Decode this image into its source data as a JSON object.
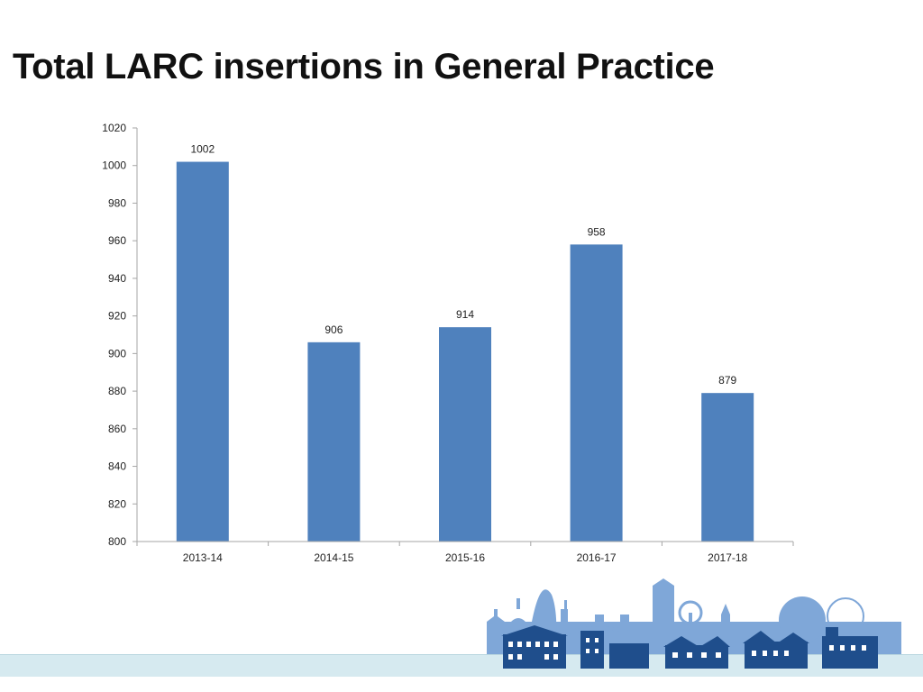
{
  "title": "Total LARC insertions in General Practice",
  "colors": {
    "bar": "#4f81bd",
    "axis": "#a6a6a6",
    "footer_band": "#d6eaf0",
    "skyline_light": "#7fa7d8",
    "skyline_dark": "#1f4e8c"
  },
  "chart_data": {
    "type": "bar",
    "title": "Total LARC insertions in General Practice",
    "categories": [
      "2013-14",
      "2014-15",
      "2015-16",
      "2016-17",
      "2017-18"
    ],
    "values": [
      1002,
      906,
      914,
      958,
      879
    ],
    "data_labels": [
      "1002",
      "906",
      "914",
      "958",
      "879"
    ],
    "xlabel": "",
    "ylabel": "",
    "ylim": [
      800,
      1020
    ],
    "yticks": [
      800,
      820,
      840,
      860,
      880,
      900,
      920,
      940,
      960,
      980,
      1000,
      1020
    ],
    "grid": false,
    "legend": "none"
  },
  "decorations": {
    "skyline_icon": "city-skyline-illustration"
  }
}
